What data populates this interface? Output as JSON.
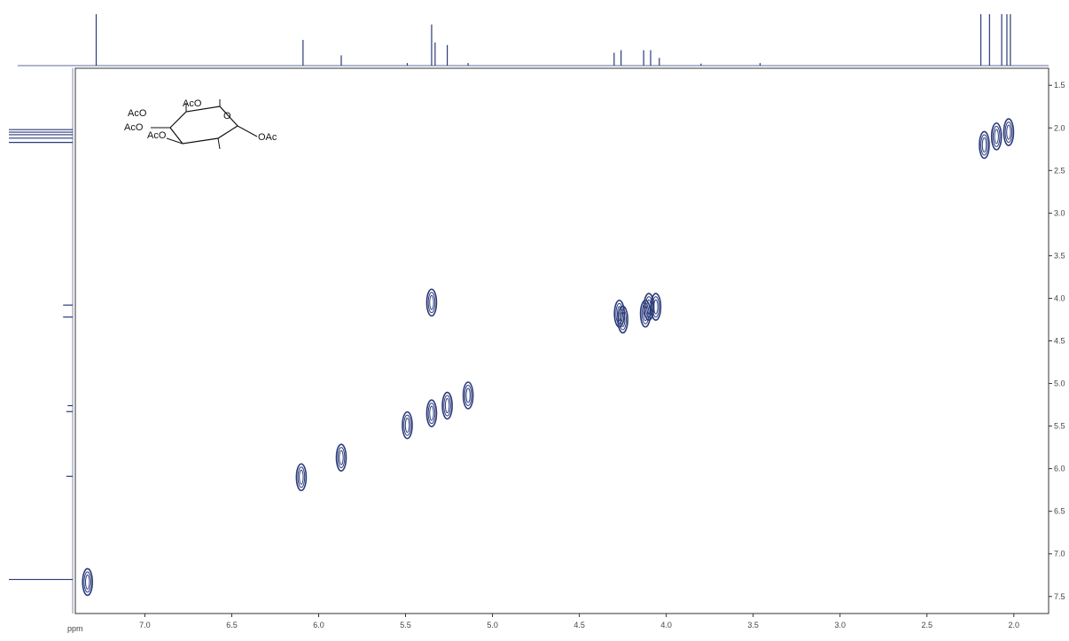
{
  "chart_data": {
    "type": "scatter",
    "subtype": "2D NMR COSY contour plot",
    "x_axis": {
      "unit_label": "ppm",
      "ticks": [
        "7.0",
        "6.5",
        "6.0",
        "5.5",
        "5.0",
        "4.5",
        "4.0",
        "3.5",
        "3.0",
        "2.5",
        "2.0"
      ],
      "range": [
        7.4,
        1.8
      ],
      "reversed": true
    },
    "y_axis": {
      "ticks": [
        "1.5",
        "2.0",
        "2.5",
        "3.0",
        "3.5",
        "4.0",
        "4.5",
        "5.0",
        "5.5",
        "6.0",
        "6.5",
        "7.0",
        "7.5"
      ],
      "range": [
        1.3,
        7.7
      ],
      "position": "right"
    },
    "grid": false,
    "line_color": "#2b3a7a",
    "diagonal_peaks": [
      {
        "x": 7.33,
        "y": 7.33
      },
      {
        "x": 6.1,
        "y": 6.1
      },
      {
        "x": 5.87,
        "y": 5.87
      },
      {
        "x": 5.49,
        "y": 5.49
      },
      {
        "x": 5.35,
        "y": 5.35
      },
      {
        "x": 5.26,
        "y": 5.26
      },
      {
        "x": 5.14,
        "y": 5.14
      },
      {
        "x": 4.25,
        "y": 4.25
      },
      {
        "x": 4.1,
        "y": 4.1
      },
      {
        "x": 2.1,
        "y": 2.1
      }
    ],
    "cross_peaks": [
      {
        "x": 5.35,
        "y": 4.05
      },
      {
        "x": 4.27,
        "y": 4.18
      },
      {
        "x": 4.12,
        "y": 4.18
      },
      {
        "x": 4.06,
        "y": 4.1
      },
      {
        "x": 2.17,
        "y": 2.2
      },
      {
        "x": 2.03,
        "y": 2.05
      }
    ],
    "top_projection_peaks": [
      {
        "x": 7.28,
        "height": 1.0
      },
      {
        "x": 6.09,
        "height": 0.5
      },
      {
        "x": 5.87,
        "height": 0.2
      },
      {
        "x": 5.49,
        "height": 0.05
      },
      {
        "x": 5.35,
        "height": 0.8
      },
      {
        "x": 5.33,
        "height": 0.45
      },
      {
        "x": 5.26,
        "height": 0.4
      },
      {
        "x": 5.14,
        "height": 0.05
      },
      {
        "x": 4.3,
        "height": 0.25
      },
      {
        "x": 4.26,
        "height": 0.3
      },
      {
        "x": 4.13,
        "height": 0.3
      },
      {
        "x": 4.09,
        "height": 0.3
      },
      {
        "x": 4.04,
        "height": 0.15
      },
      {
        "x": 3.8,
        "height": 0.04
      },
      {
        "x": 3.46,
        "height": 0.05
      },
      {
        "x": 2.19,
        "height": 1.0
      },
      {
        "x": 2.14,
        "height": 1.0
      },
      {
        "x": 2.07,
        "height": 1.0
      },
      {
        "x": 2.04,
        "height": 1.0
      },
      {
        "x": 2.02,
        "height": 1.0
      }
    ],
    "left_projection_peaks": [
      {
        "y": 2.02,
        "height": 1.0
      },
      {
        "y": 2.05,
        "height": 1.0
      },
      {
        "y": 2.08,
        "height": 1.0
      },
      {
        "y": 2.12,
        "height": 1.0
      },
      {
        "y": 2.17,
        "height": 1.0
      },
      {
        "y": 4.08,
        "height": 0.15
      },
      {
        "y": 4.22,
        "height": 0.15
      },
      {
        "y": 5.26,
        "height": 0.08
      },
      {
        "y": 5.33,
        "height": 0.1
      },
      {
        "y": 6.09,
        "height": 0.1
      },
      {
        "y": 7.3,
        "height": 1.0
      }
    ],
    "structure": {
      "labels": [
        "AcO",
        "AcO",
        "AcO",
        "AcO",
        "O",
        "OAc"
      ]
    }
  }
}
